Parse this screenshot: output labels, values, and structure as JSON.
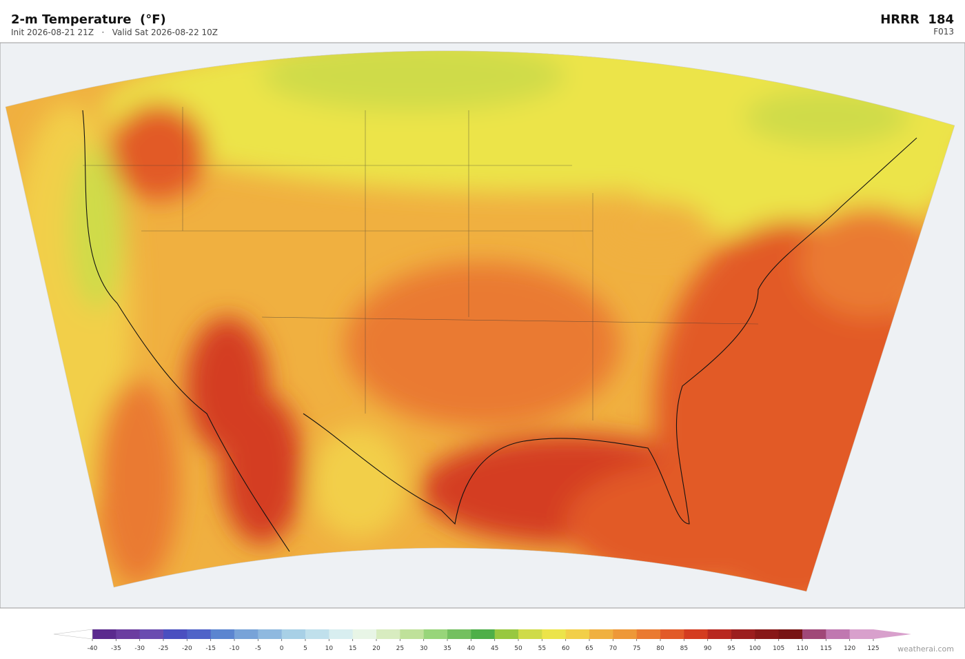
{
  "header": {
    "title": "2-m Temperature  (°F)",
    "subtitle": "Init 2026-08-21 21Z   ·   Valid Sat 2026-08-22 10Z",
    "model": "HRRR  184",
    "forecast_hour": "F013"
  },
  "colorbar": {
    "ticks": [
      -40,
      -35,
      -30,
      -25,
      -20,
      -15,
      -10,
      -5,
      0,
      5,
      10,
      15,
      20,
      25,
      30,
      35,
      40,
      45,
      50,
      55,
      60,
      65,
      70,
      75,
      80,
      85,
      90,
      95,
      100,
      105,
      110,
      115,
      120,
      125
    ],
    "colors": [
      "#5b2a8e",
      "#6b3da0",
      "#6a4cb0",
      "#4a4fc0",
      "#4f63c8",
      "#5b85d0",
      "#78a3d8",
      "#8fb9df",
      "#a8d0e6",
      "#c0e0ec",
      "#d8eef0",
      "#e8f5e6",
      "#d8ecc0",
      "#bfe19a",
      "#98d57a",
      "#74c060",
      "#4eaf48",
      "#98c840",
      "#cfdb48",
      "#ece44a",
      "#f2cf48",
      "#f0b040",
      "#ee9838",
      "#ea7a30",
      "#e25a28",
      "#d43c20",
      "#b82820",
      "#9c1e1e",
      "#881818",
      "#781414",
      "#a04878",
      "#c078b0",
      "#d8a0cc"
    ],
    "under_color": "#ffffff",
    "over_color": "#d8a0cc"
  },
  "footer": {
    "credit": "weatherai.com"
  }
}
